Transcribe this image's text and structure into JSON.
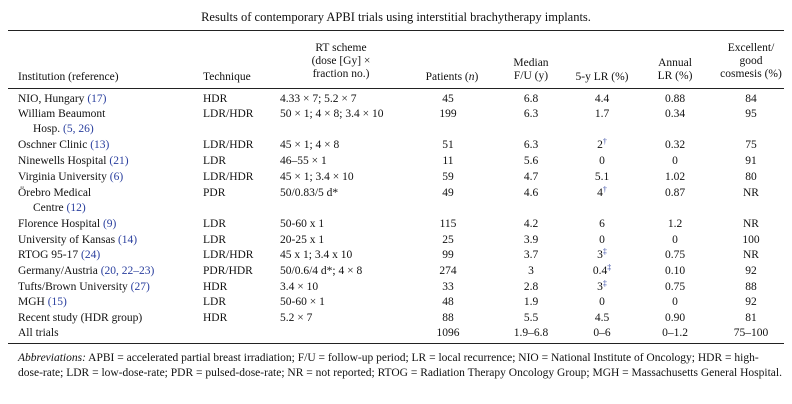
{
  "caption": "Results of contemporary APBI trials using interstitial brachytherapy implants.",
  "headers": {
    "institution": "Institution (reference)",
    "technique": "Technique",
    "rt_scheme": [
      "RT scheme",
      "(dose [Gy] ×",
      "fraction no.)"
    ],
    "patients_prefix": "Patients (",
    "patients_n": "n",
    "patients_suffix": ")",
    "median_fu": [
      "Median",
      "F/U (y)"
    ],
    "lr5": "5-y LR (%)",
    "annual_lr": [
      "Annual",
      "LR (%)"
    ],
    "cosmesis": [
      "Excellent/",
      "good",
      "cosmesis (%)"
    ]
  },
  "rows": [
    {
      "inst": "NIO, Hungary",
      "ref": "(17)",
      "inst2": "",
      "ref2": "",
      "tech": "HDR",
      "rt": "4.33 × 7; 5.2 × 7",
      "rt2": "",
      "patients": "45",
      "median": "6.8",
      "lr5": "4.4",
      "lr5_sup": "",
      "annual": "0.88",
      "cosmesis": "84"
    },
    {
      "inst": "William Beaumont",
      "ref": "",
      "inst2": "Hosp.",
      "ref2": "(5, 26)",
      "tech": "LDR/HDR",
      "rt": "50 × 1; 4 × 8; 3.4 × 10",
      "rt2": "",
      "patients": "199",
      "median": "6.3",
      "lr5": "1.7",
      "lr5_sup": "",
      "annual": "0.34",
      "cosmesis": "95"
    },
    {
      "inst": "Oschner Clinic",
      "ref": "(13)",
      "inst2": "",
      "ref2": "",
      "tech": "LDR/HDR",
      "rt": "45 × 1; 4 × 8",
      "rt2": "",
      "patients": "51",
      "median": "6.3",
      "lr5": "2",
      "lr5_sup": "†",
      "annual": "0.32",
      "cosmesis": "75"
    },
    {
      "inst": "Ninewells Hospital",
      "ref": "(21)",
      "inst2": "",
      "ref2": "",
      "tech": "LDR",
      "rt": "46–55 × 1",
      "rt2": "",
      "patients": "11",
      "median": "5.6",
      "lr5": "0",
      "lr5_sup": "",
      "annual": "0",
      "cosmesis": "91"
    },
    {
      "inst": "Virginia University",
      "ref": "(6)",
      "inst2": "",
      "ref2": "",
      "tech": "LDR/HDR",
      "rt": "45 × 1; 3.4 × 10",
      "rt2": "",
      "patients": "59",
      "median": "4.7",
      "lr5": "5.1",
      "lr5_sup": "",
      "annual": "1.02",
      "cosmesis": "80"
    },
    {
      "inst": "Örebro Medical",
      "ref": "",
      "inst2": "Centre",
      "ref2": "(12)",
      "tech": "PDR",
      "rt": "50/0.83/5 d*",
      "rt2": "",
      "patients": "49",
      "median": "4.6",
      "lr5": "4",
      "lr5_sup": "†",
      "annual": "0.87",
      "cosmesis": "NR"
    },
    {
      "inst": "Florence Hospital",
      "ref": "(9)",
      "inst2": "",
      "ref2": "",
      "tech": "LDR",
      "rt": "50-60 x 1",
      "rt2": "",
      "patients": "115",
      "median": "4.2",
      "lr5": "6",
      "lr5_sup": "",
      "annual": "1.2",
      "cosmesis": "NR"
    },
    {
      "inst": "University of Kansas",
      "ref": "(14)",
      "inst2": "",
      "ref2": "",
      "tech": "LDR",
      "rt": "20-25 x 1",
      "rt2": "",
      "patients": "25",
      "median": "3.9",
      "lr5": "0",
      "lr5_sup": "",
      "annual": "0",
      "cosmesis": "100"
    },
    {
      "inst": "RTOG 95-17",
      "ref": "(24)",
      "inst2": "",
      "ref2": "",
      "tech": "LDR/HDR",
      "rt": "45 x 1; 3.4 x 10",
      "rt2": "",
      "patients": "99",
      "median": "3.7",
      "lr5": "3",
      "lr5_sup": "‡",
      "annual": "0.75",
      "cosmesis": "NR"
    },
    {
      "inst": "Germany/Austria",
      "ref": "(20, 22–23)",
      "inst2": "",
      "ref2": "",
      "tech": "PDR/HDR",
      "rt": "50/0.6/4 d*; 4 × 8",
      "rt2": "",
      "patients": "274",
      "median": "3",
      "lr5": "0.4",
      "lr5_sup": "‡",
      "annual": "0.10",
      "cosmesis": "92"
    },
    {
      "inst": "Tufts/Brown University",
      "ref": "(27)",
      "inst2": "",
      "ref2": "",
      "tech": "HDR",
      "rt": "3.4 × 10",
      "rt2": "",
      "patients": "33",
      "median": "2.8",
      "lr5": "3",
      "lr5_sup": "‡",
      "annual": "0.75",
      "cosmesis": "88"
    },
    {
      "inst": "MGH",
      "ref": "(15)",
      "inst2": "",
      "ref2": "",
      "tech": "LDR",
      "rt": "50-60 × 1",
      "rt2": "",
      "patients": "48",
      "median": "1.9",
      "lr5": "0",
      "lr5_sup": "",
      "annual": "0",
      "cosmesis": "92"
    },
    {
      "inst": "Recent study (HDR group)",
      "ref": "",
      "inst2": "",
      "ref2": "",
      "tech": "HDR",
      "rt": "5.2 × 7",
      "rt2": "",
      "patients": "88",
      "median": "5.5",
      "lr5": "4.5",
      "lr5_sup": "",
      "annual": "0.90",
      "cosmesis": "81"
    },
    {
      "inst": "All trials",
      "ref": "",
      "inst2": "",
      "ref2": "",
      "tech": "",
      "rt": "",
      "rt2": "",
      "patients": "1096",
      "median": "1.9–6.8",
      "lr5": "0–6",
      "lr5_sup": "",
      "annual": "0–1.2",
      "cosmesis": "75–100"
    }
  ],
  "footnote": {
    "label": "Abbreviations:",
    "text": " APBI = accelerated partial breast irradiation; F/U = follow-up period; LR = local recurrence; NIO = National Institute of Oncology; HDR = high-dose-rate; LDR = low-dose-rate; PDR = pulsed-dose-rate; NR = not reported; RTOG = Radiation Therapy Oncology Group; MGH = Massachusetts General Hospital."
  }
}
